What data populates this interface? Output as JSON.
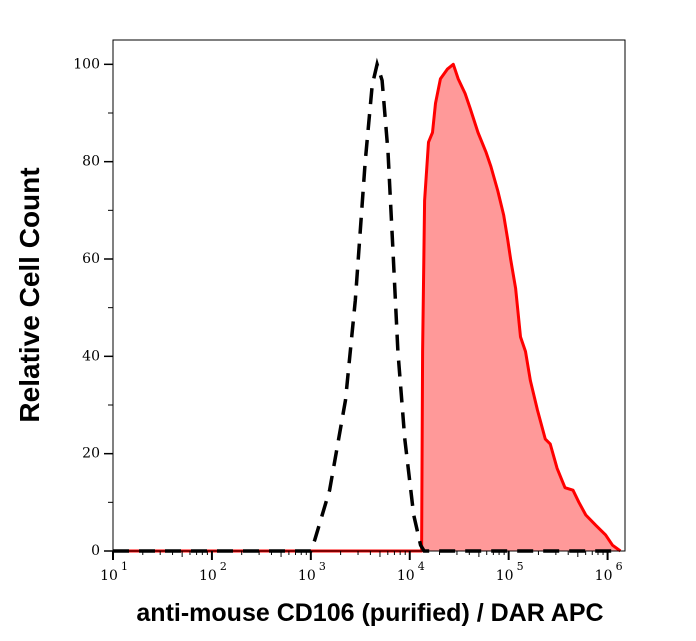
{
  "chart_data": {
    "type": "area",
    "title": "",
    "xlabel": "anti-mouse CD106 (purified) / DAR APC",
    "ylabel": "Relative Cell Count",
    "x_scale": "log",
    "xlim": [
      10,
      1500000
    ],
    "ylim": [
      0,
      105
    ],
    "x_ticks": [
      {
        "value": 10,
        "base": "10",
        "exp": "1"
      },
      {
        "value": 100,
        "base": "10",
        "exp": "2"
      },
      {
        "value": 1000,
        "base": "10",
        "exp": "3"
      },
      {
        "value": 10000,
        "base": "10",
        "exp": "4"
      },
      {
        "value": 100000,
        "base": "10",
        "exp": "5"
      },
      {
        "value": 1000000,
        "base": "10",
        "exp": "6"
      }
    ],
    "y_ticks": [
      "0",
      "20",
      "40",
      "60",
      "80",
      "100"
    ],
    "grid": false,
    "series": [
      {
        "style": "dashed-line",
        "color": "#000000",
        "x": [
          10,
          1000,
          1096,
          1549,
          2239,
          2818,
          3548,
          4169,
          4677,
          5248,
          6026,
          6761,
          7586,
          8913,
          10965,
          12882,
          14000,
          1300000
        ],
        "y": [
          0,
          0,
          2.3,
          12.5,
          31,
          51.5,
          80,
          95.7,
          100,
          96.7,
          82,
          62,
          41,
          23,
          7.4,
          1.2,
          0,
          0
        ]
      },
      {
        "style": "filled-area",
        "color": "#ff0000",
        "fill": "#ff9999",
        "x": [
          10,
          13183,
          13490,
          14125,
          15488,
          16982,
          18197,
          20417,
          23988,
          27542,
          30903,
          36308,
          40738,
          48978,
          58884,
          66069,
          77625,
          89125,
          97724,
          104713,
          117490,
          131826,
          147911,
          165959,
          194984,
          234423,
          263027,
          309030,
          371535,
          446684,
          512861,
          602560,
          758578,
          954993,
          1122018,
          1348963
        ],
        "y": [
          0,
          0,
          41,
          72,
          84,
          86,
          92,
          97,
          99,
          100,
          97,
          94,
          91,
          86,
          82,
          79,
          74,
          69,
          64,
          60,
          54,
          44,
          41,
          35,
          29,
          23,
          22,
          17,
          13,
          12.5,
          10,
          7.4,
          5.3,
          3.3,
          1.2,
          0
        ]
      }
    ]
  }
}
